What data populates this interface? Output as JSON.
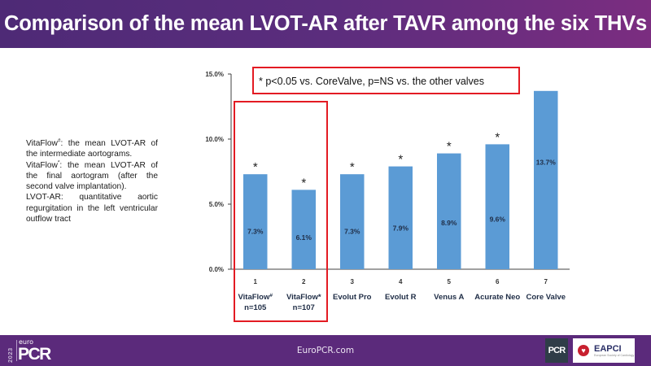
{
  "header": {
    "title": "Comparison of the mean LVOT-AR after TAVR among the six THVs"
  },
  "notes": [
    {
      "label": "VitaFlow",
      "sup": "#",
      "text": ": the mean LVOT-AR of the intermediate aortograms."
    },
    {
      "label": "VitaFlow",
      "sup": "*",
      "text": ": the mean LVOT-AR of the final aortogram (after the second valve implantation)."
    },
    {
      "label": "LVOT-AR",
      "sup": "",
      "text": ": quantitative aortic regurgitation in the left ventricular outflow tract"
    }
  ],
  "chart_data": {
    "type": "bar",
    "title": "",
    "xlabel": "",
    "ylabel": "",
    "ylim": [
      0,
      15
    ],
    "yticks": [
      "0.0%",
      "5.0%",
      "10.0%",
      "15.0%"
    ],
    "ytick_values": [
      0,
      5,
      10,
      15
    ],
    "grid": false,
    "categories": [
      "1",
      "2",
      "3",
      "4",
      "5",
      "6",
      "7"
    ],
    "category_names": [
      {
        "name": "VitaFlow",
        "sup": "#",
        "n": "n=105"
      },
      {
        "name": "VitaFlow",
        "sup": "*",
        "n": "n=107"
      },
      {
        "name": "Evolut Pro",
        "sup": "",
        "n": ""
      },
      {
        "name": "Evolut R",
        "sup": "",
        "n": ""
      },
      {
        "name": "Venus A",
        "sup": "",
        "n": ""
      },
      {
        "name": "Acurate Neo",
        "sup": "",
        "n": ""
      },
      {
        "name": "Core Valve",
        "sup": "",
        "n": ""
      }
    ],
    "values": [
      7.3,
      6.1,
      7.3,
      7.9,
      8.9,
      9.6,
      13.7
    ],
    "data_labels": [
      "7.3%",
      "6.1%",
      "7.3%",
      "7.9%",
      "8.9%",
      "9.6%",
      "13.7%"
    ],
    "significance_markers": [
      "*",
      "*",
      "*",
      "*",
      "*",
      "*",
      ""
    ],
    "annotation": "* p<0.05 vs. CoreValve, p=NS vs. the other valves",
    "highlighted_categories": [
      "1",
      "2"
    ],
    "bar_color": "#5b9bd5",
    "highlight_color": "#e31b23"
  },
  "footer": {
    "url": "EuroPCR.com",
    "logo_year": "2023",
    "logo_prefix": "euro",
    "logo_name": "PCR",
    "partner_badge": "PCR",
    "partner_logo": "EAPCI",
    "partner_logo_sub": "European Society of Cardiology"
  }
}
